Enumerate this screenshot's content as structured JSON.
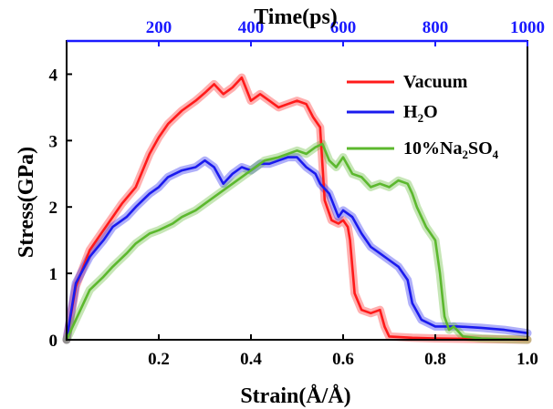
{
  "chart_data": {
    "type": "line",
    "xlabel": "Strain(Å/Å)",
    "ylabel": "Stress(GPa)",
    "top_xlabel": "Time(ps)",
    "xlim": [
      0.0,
      1.0
    ],
    "ylim": [
      0,
      4.5
    ],
    "top_xlim": [
      0,
      1000
    ],
    "x_ticks": [
      0.2,
      0.4,
      0.6,
      0.8,
      1.0
    ],
    "x_tick_labels": [
      "0.2",
      "0.4",
      "0.6",
      "0.8",
      "1.0"
    ],
    "y_ticks": [
      0,
      1,
      2,
      3,
      4
    ],
    "y_tick_labels": [
      "0",
      "1",
      "2",
      "3",
      "4"
    ],
    "top_x_ticks": [
      200,
      400,
      600,
      800,
      1000
    ],
    "top_x_tick_labels": [
      "200",
      "400",
      "600",
      "800",
      "1000"
    ],
    "top_axis_color": "#1a1aff",
    "legend_position": "top-right",
    "grid": false,
    "series": [
      {
        "name": "Vacuum",
        "color": "#ff1a1a",
        "legend_main": "Vacuum",
        "legend_sub": "",
        "legend_tail": "",
        "x": [
          0.0,
          0.02,
          0.05,
          0.08,
          0.1,
          0.12,
          0.15,
          0.18,
          0.2,
          0.22,
          0.25,
          0.28,
          0.3,
          0.32,
          0.34,
          0.36,
          0.38,
          0.4,
          0.42,
          0.44,
          0.46,
          0.48,
          0.5,
          0.52,
          0.535,
          0.55,
          0.56,
          0.575,
          0.59,
          0.6,
          0.61,
          0.615,
          0.625,
          0.64,
          0.66,
          0.68,
          0.69,
          0.7,
          0.75,
          0.8,
          1.0
        ],
        "y": [
          0.0,
          0.8,
          1.35,
          1.65,
          1.85,
          2.05,
          2.3,
          2.8,
          3.05,
          3.25,
          3.45,
          3.6,
          3.72,
          3.85,
          3.7,
          3.8,
          3.95,
          3.6,
          3.7,
          3.6,
          3.5,
          3.55,
          3.6,
          3.55,
          3.35,
          3.2,
          2.1,
          1.8,
          1.75,
          1.8,
          1.7,
          1.5,
          0.7,
          0.45,
          0.4,
          0.45,
          0.2,
          0.05,
          0.03,
          0.02,
          0.0
        ]
      },
      {
        "name": "H2O",
        "color": "#1a1aee",
        "legend_main": "H",
        "legend_sub": "2",
        "legend_tail": "O",
        "x": [
          0.0,
          0.02,
          0.05,
          0.08,
          0.1,
          0.13,
          0.15,
          0.18,
          0.2,
          0.22,
          0.25,
          0.28,
          0.3,
          0.32,
          0.34,
          0.36,
          0.38,
          0.4,
          0.42,
          0.44,
          0.46,
          0.48,
          0.5,
          0.52,
          0.54,
          0.55,
          0.57,
          0.59,
          0.6,
          0.62,
          0.64,
          0.66,
          0.68,
          0.7,
          0.72,
          0.74,
          0.75,
          0.77,
          0.8,
          0.85,
          0.9,
          0.95,
          1.0
        ],
        "y": [
          0.0,
          0.85,
          1.25,
          1.5,
          1.7,
          1.85,
          2.0,
          2.2,
          2.3,
          2.45,
          2.55,
          2.6,
          2.7,
          2.6,
          2.35,
          2.5,
          2.6,
          2.55,
          2.65,
          2.65,
          2.7,
          2.75,
          2.75,
          2.6,
          2.5,
          2.35,
          2.2,
          1.85,
          1.95,
          1.85,
          1.6,
          1.4,
          1.3,
          1.2,
          1.1,
          0.9,
          0.55,
          0.3,
          0.2,
          0.2,
          0.18,
          0.15,
          0.1
        ]
      },
      {
        "name": "10%Na2SO4",
        "color": "#5cb82e",
        "legend_main": "10%Na",
        "legend_sub": "2",
        "legend_tail": "SO",
        "legend_sub2": "4",
        "x": [
          0.0,
          0.02,
          0.05,
          0.08,
          0.1,
          0.13,
          0.15,
          0.18,
          0.2,
          0.23,
          0.25,
          0.28,
          0.3,
          0.33,
          0.36,
          0.4,
          0.43,
          0.46,
          0.5,
          0.52,
          0.54,
          0.555,
          0.57,
          0.585,
          0.6,
          0.62,
          0.64,
          0.66,
          0.68,
          0.7,
          0.72,
          0.74,
          0.75,
          0.76,
          0.78,
          0.8,
          0.81,
          0.82,
          0.83,
          0.84,
          0.86,
          0.9,
          1.0
        ],
        "y": [
          0.0,
          0.3,
          0.75,
          0.95,
          1.1,
          1.3,
          1.45,
          1.6,
          1.65,
          1.75,
          1.85,
          1.95,
          2.05,
          2.2,
          2.35,
          2.55,
          2.7,
          2.75,
          2.85,
          2.8,
          2.9,
          2.95,
          2.7,
          2.6,
          2.75,
          2.5,
          2.45,
          2.3,
          2.35,
          2.3,
          2.4,
          2.35,
          2.2,
          2.0,
          1.7,
          1.5,
          1.0,
          0.35,
          0.15,
          0.2,
          0.05,
          0.02,
          0.0
        ]
      }
    ]
  }
}
